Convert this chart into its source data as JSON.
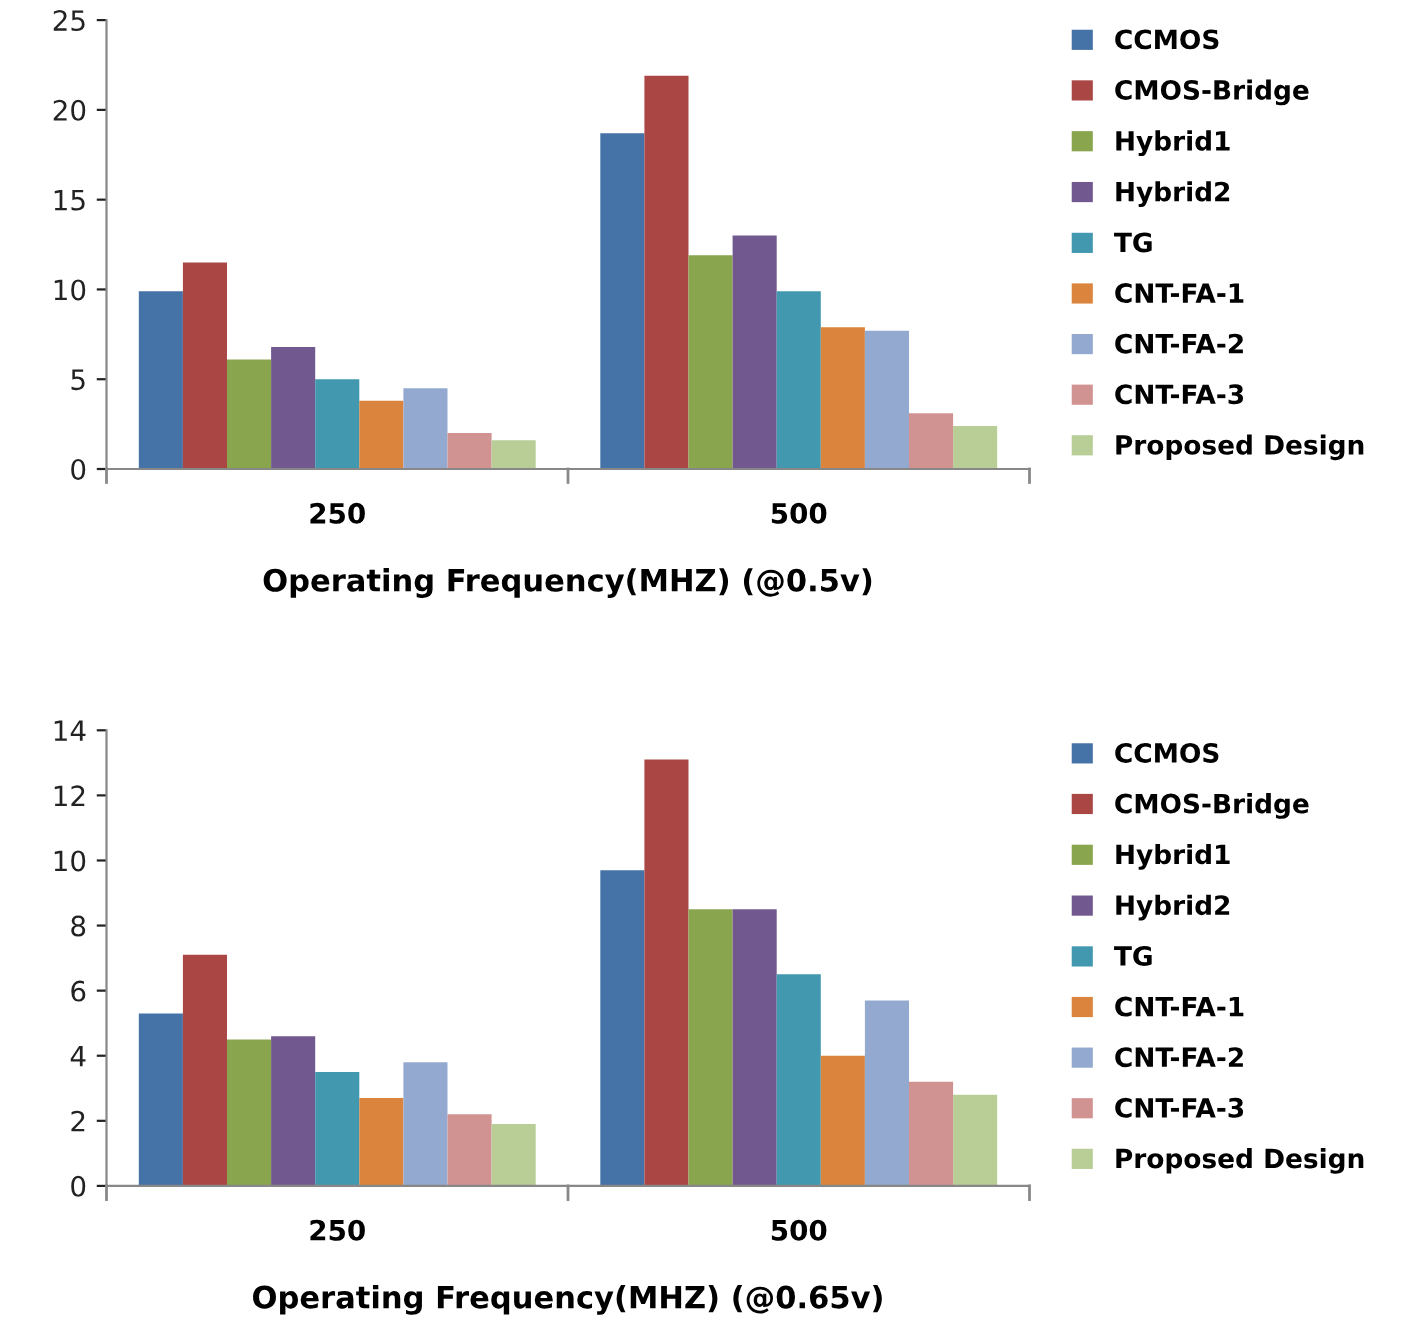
{
  "chart_data": [
    {
      "type": "bar",
      "xlabel": "Operating Frequency(MHZ) (@0.5v)",
      "categories": [
        "250",
        "500"
      ],
      "ylim": [
        0,
        25
      ],
      "yticks": [
        0,
        5,
        10,
        15,
        20,
        25
      ],
      "grid": false,
      "legend": "right",
      "series": [
        {
          "name": "CCMOS",
          "color": "#4572a7",
          "values": [
            9.9,
            18.7
          ]
        },
        {
          "name": "CMOS-Bridge",
          "color": "#aa4643",
          "values": [
            11.5,
            21.9
          ]
        },
        {
          "name": "Hybrid1",
          "color": "#89a54e",
          "values": [
            6.1,
            11.9
          ]
        },
        {
          "name": "Hybrid2",
          "color": "#71588f",
          "values": [
            6.8,
            13.0
          ]
        },
        {
          "name": "TG",
          "color": "#4198af",
          "values": [
            5.0,
            9.9
          ]
        },
        {
          "name": "CNT-FA-1",
          "color": "#db843d",
          "values": [
            3.8,
            7.9
          ]
        },
        {
          "name": "CNT-FA-2",
          "color": "#93a9cf",
          "values": [
            4.5,
            7.7
          ]
        },
        {
          "name": "CNT-FA-3",
          "color": "#d19392",
          "values": [
            2.0,
            3.1
          ]
        },
        {
          "name": "Proposed Design",
          "color": "#b9cd96",
          "values": [
            1.6,
            2.4
          ]
        }
      ]
    },
    {
      "type": "bar",
      "xlabel": "Operating Frequency(MHZ) (@0.65v)",
      "categories": [
        "250",
        "500"
      ],
      "ylim": [
        0,
        14
      ],
      "yticks": [
        0,
        2,
        4,
        6,
        8,
        10,
        12,
        14
      ],
      "grid": false,
      "legend": "right",
      "series": [
        {
          "name": "CCMOS",
          "color": "#4572a7",
          "values": [
            5.3,
            9.7
          ]
        },
        {
          "name": "CMOS-Bridge",
          "color": "#aa4643",
          "values": [
            7.1,
            13.1
          ]
        },
        {
          "name": "Hybrid1",
          "color": "#89a54e",
          "values": [
            4.5,
            8.5
          ]
        },
        {
          "name": "Hybrid2",
          "color": "#71588f",
          "values": [
            4.6,
            8.5
          ]
        },
        {
          "name": "TG",
          "color": "#4198af",
          "values": [
            3.5,
            6.5
          ]
        },
        {
          "name": "CNT-FA-1",
          "color": "#db843d",
          "values": [
            2.7,
            4.0
          ]
        },
        {
          "name": "CNT-FA-2",
          "color": "#93a9cf",
          "values": [
            3.8,
            5.7
          ]
        },
        {
          "name": "CNT-FA-3",
          "color": "#d19392",
          "values": [
            2.2,
            3.2
          ]
        },
        {
          "name": "Proposed Design",
          "color": "#b9cd96",
          "values": [
            1.9,
            2.8
          ]
        }
      ]
    }
  ]
}
